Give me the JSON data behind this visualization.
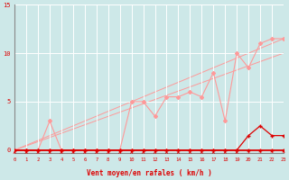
{
  "xlabel": "Vent moyen/en rafales ( km/h )",
  "bg_color": "#cde8e8",
  "grid_color": "#ffffff",
  "x_min": 0,
  "x_max": 23,
  "y_min": -0.3,
  "y_max": 15,
  "diag1_end_y": 11.5,
  "diag2_end_y": 11.5,
  "pink_x": [
    0,
    1,
    2,
    3,
    4,
    5,
    6,
    7,
    8,
    9,
    10,
    11,
    12,
    13,
    14,
    15,
    16,
    17,
    18,
    19,
    20,
    21,
    22,
    23
  ],
  "pink_y": [
    0,
    0,
    0,
    3,
    0,
    0,
    0,
    0,
    0,
    0,
    5,
    5,
    3.5,
    5.5,
    5.5,
    6,
    5.5,
    8,
    3,
    10,
    8.5,
    11,
    11.5,
    11.5
  ],
  "red_x": [
    0,
    1,
    2,
    3,
    4,
    5,
    6,
    7,
    8,
    9,
    10,
    11,
    12,
    13,
    14,
    15,
    16,
    17,
    18,
    19,
    20,
    21,
    22,
    23
  ],
  "red_y": [
    0,
    0,
    0,
    0,
    0,
    0,
    0,
    0,
    0,
    0,
    0,
    0,
    0,
    0,
    0,
    0,
    0,
    0,
    0,
    0,
    1.5,
    2.5,
    1.5,
    1.5
  ],
  "count_x": [
    0,
    1,
    2,
    3,
    4,
    5,
    6,
    7,
    8,
    9,
    10,
    11,
    12,
    13,
    14,
    15,
    16,
    17,
    18,
    19,
    20,
    21,
    22,
    23
  ],
  "count_y": [
    0,
    0,
    0,
    0,
    0,
    0,
    0,
    0,
    0,
    0,
    0,
    0,
    0,
    0,
    0,
    0,
    0,
    0,
    0,
    0,
    0,
    0,
    0,
    0
  ],
  "yticks": [
    0,
    5,
    10,
    15
  ],
  "color_dark_red": "#dd0000",
  "color_pink": "#ff9999",
  "color_spine": "#888888",
  "arrow_straight_count": 20,
  "arrow_angled_starts": [
    20,
    21,
    22,
    23
  ],
  "arrow_angles_deg": [
    20,
    35,
    50,
    60
  ]
}
